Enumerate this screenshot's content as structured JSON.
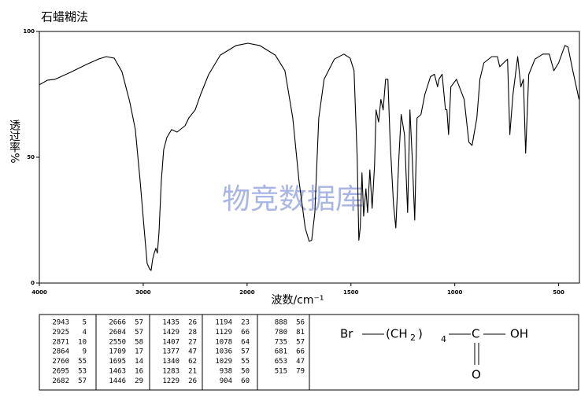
{
  "chart_data": {
    "type": "line",
    "title": "石蜡糊法",
    "watermark": "物竞数据库",
    "xlabel": "波数/cm⁻¹",
    "ylabel": "透过率%",
    "xlim": [
      4000,
      400
    ],
    "xscale_break": 2000,
    "xticks": [
      4000,
      3000,
      2000,
      1500,
      1000,
      500
    ],
    "ylim": [
      0,
      100
    ],
    "yticks": [
      0,
      50,
      100
    ],
    "color": "#000000",
    "x": [
      4000,
      3924,
      3848,
      3697,
      3545,
      3432,
      3356,
      3280,
      3205,
      3129,
      3076,
      3030,
      2992,
      2962,
      2939,
      2924,
      2909,
      2894,
      2879,
      2864,
      2848,
      2826,
      2803,
      2773,
      2727,
      2674,
      2598,
      2561,
      2500,
      2447,
      2371,
      2258,
      2106,
      1996,
      1939,
      1864,
      1818,
      1780,
      1750,
      1720,
      1701,
      1689,
      1674,
      1655,
      1629,
      1580,
      1534,
      1504,
      1485,
      1470,
      1462,
      1455,
      1447,
      1439,
      1428,
      1420,
      1409,
      1398,
      1386,
      1379,
      1367,
      1356,
      1345,
      1333,
      1322,
      1311,
      1295,
      1284,
      1269,
      1258,
      1242,
      1227,
      1216,
      1205,
      1193,
      1182,
      1163,
      1144,
      1117,
      1098,
      1083,
      1076,
      1061,
      1045,
      1038,
      1030,
      1019,
      992,
      955,
      932,
      917,
      894,
      879,
      860,
      822,
      795,
      784,
      765,
      746,
      735,
      720,
      697,
      682,
      670,
      659,
      644,
      614,
      576,
      545,
      523,
      500,
      470,
      455,
      432,
      402
    ],
    "values": [
      78.8,
      80.6,
      81,
      83.8,
      86.9,
      89,
      90,
      89.4,
      84,
      71.9,
      61,
      40.6,
      21.9,
      7.8,
      5.6,
      5,
      9.4,
      11.9,
      13.8,
      11.9,
      20.3,
      40.6,
      53,
      57.8,
      61,
      60,
      62.5,
      65.6,
      68.8,
      75,
      82.8,
      90.6,
      94.4,
      95.3,
      94.4,
      90.6,
      84.4,
      65.6,
      40.6,
      21.9,
      16.6,
      17,
      28,
      65.6,
      81,
      89,
      91,
      89.4,
      84.4,
      50,
      17,
      22,
      43.8,
      26.6,
      37.5,
      28,
      45,
      29.7,
      47,
      68.8,
      64,
      73,
      68.8,
      81,
      81,
      56,
      31,
      21.9,
      50,
      67,
      59,
      28,
      68.8,
      50,
      25,
      65.6,
      67,
      75,
      82,
      83,
      78,
      81,
      83,
      69,
      68.8,
      59,
      78,
      81,
      73,
      56,
      54.7,
      65.6,
      81,
      87.5,
      90,
      90,
      86,
      87.5,
      89,
      59,
      75,
      90,
      78,
      81,
      51.6,
      82.8,
      89,
      91,
      91,
      84.4,
      87.5,
      94.4,
      93.8,
      84.4,
      73
    ],
    "peak_table": [
      [
        [
          2943,
          5
        ],
        [
          2925,
          4
        ],
        [
          2871,
          10
        ],
        [
          2864,
          9
        ],
        [
          2760,
          55
        ],
        [
          2695,
          53
        ],
        [
          2682,
          57
        ]
      ],
      [
        [
          2666,
          57
        ],
        [
          2604,
          57
        ],
        [
          2550,
          58
        ],
        [
          1709,
          17
        ],
        [
          1695,
          14
        ],
        [
          1463,
          16
        ],
        [
          1446,
          29
        ]
      ],
      [
        [
          1435,
          26
        ],
        [
          1429,
          28
        ],
        [
          1407,
          27
        ],
        [
          1377,
          47
        ],
        [
          1340,
          62
        ],
        [
          1283,
          21
        ],
        [
          1229,
          26
        ]
      ],
      [
        [
          1194,
          23
        ],
        [
          1129,
          66
        ],
        [
          1078,
          64
        ],
        [
          1036,
          57
        ],
        [
          1029,
          55
        ],
        [
          938,
          50
        ],
        [
          904,
          60
        ]
      ],
      [
        [
          888,
          56
        ],
        [
          780,
          81
        ],
        [
          735,
          57
        ],
        [
          681,
          66
        ],
        [
          653,
          47
        ],
        [
          515,
          79
        ]
      ]
    ],
    "structure": [
      "Br",
      "(CH",
      "2",
      ")",
      "4",
      "C",
      "OH",
      "O"
    ]
  }
}
